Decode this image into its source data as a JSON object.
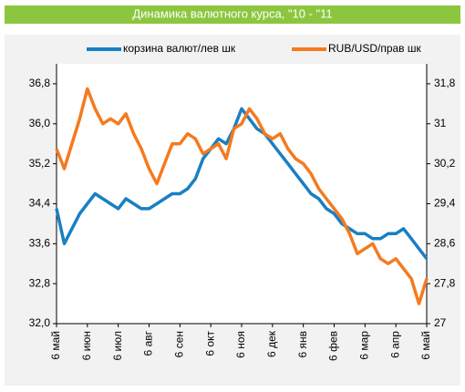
{
  "chart_data": {
    "type": "line",
    "title": "Динамика валютного курса, \"10 - \"11",
    "categories": [
      "6 май",
      null,
      null,
      null,
      "6 июн",
      null,
      null,
      null,
      "6 июл",
      null,
      null,
      null,
      "6 авг",
      null,
      null,
      null,
      "6 сен",
      null,
      null,
      null,
      "6 окт",
      null,
      null,
      null,
      "6 ноя",
      null,
      null,
      null,
      "6 дек",
      null,
      null,
      null,
      "6 янв",
      null,
      null,
      null,
      "6 фев",
      null,
      null,
      null,
      "6 мар",
      null,
      null,
      null,
      "6 апр",
      null,
      null,
      null,
      "6 май"
    ],
    "series": [
      {
        "name": "корзина валют/лев шк",
        "color": "#1a7fc4",
        "axis": "y",
        "values": [
          34.3,
          33.6,
          33.9,
          34.2,
          34.4,
          34.6,
          34.5,
          34.4,
          34.3,
          34.5,
          34.4,
          34.3,
          34.3,
          34.4,
          34.5,
          34.6,
          34.6,
          34.7,
          34.9,
          35.3,
          35.5,
          35.7,
          35.6,
          35.9,
          36.3,
          36.1,
          35.9,
          35.8,
          35.6,
          35.4,
          35.2,
          35.0,
          34.8,
          34.6,
          34.5,
          34.3,
          34.2,
          34.0,
          33.9,
          33.8,
          33.8,
          33.7,
          33.7,
          33.8,
          33.8,
          33.9,
          33.7,
          33.5,
          33.3
        ]
      },
      {
        "name": "RUB/USD/прав шк",
        "color": "#f57a1f",
        "axis": "y2",
        "values": [
          30.5,
          30.1,
          30.6,
          31.1,
          31.7,
          31.3,
          31.0,
          31.1,
          31.0,
          31.2,
          30.8,
          30.5,
          30.1,
          29.8,
          30.2,
          30.6,
          30.6,
          30.8,
          30.7,
          30.4,
          30.5,
          30.6,
          30.3,
          30.9,
          31.0,
          31.3,
          31.1,
          30.8,
          30.7,
          30.8,
          30.5,
          30.3,
          30.2,
          30.0,
          29.7,
          29.5,
          29.3,
          29.1,
          28.8,
          28.4,
          28.5,
          28.6,
          28.3,
          28.2,
          28.3,
          28.1,
          27.9,
          27.4,
          27.9
        ]
      }
    ],
    "ylim": [
      32.0,
      37.2
    ],
    "yticks": [
      {
        "value": 32.0,
        "label": "32,0"
      },
      {
        "value": 32.8,
        "label": "32,8"
      },
      {
        "value": 33.6,
        "label": "33,6"
      },
      {
        "value": 34.4,
        "label": "34,4"
      },
      {
        "value": 35.2,
        "label": "35,2"
      },
      {
        "value": 36.0,
        "label": "36,0"
      },
      {
        "value": 36.8,
        "label": "36,8"
      }
    ],
    "y2lim": [
      27,
      32.2
    ],
    "y2ticks": [
      27,
      {
        "value": 27.8,
        "label": "27,8"
      },
      {
        "value": 28.6,
        "label": "28,6"
      },
      {
        "value": 29.4,
        "label": "29,4"
      },
      {
        "value": 30.2,
        "label": "30,2"
      },
      31,
      {
        "value": 31.8,
        "label": "31,8"
      }
    ],
    "legend": "top"
  }
}
